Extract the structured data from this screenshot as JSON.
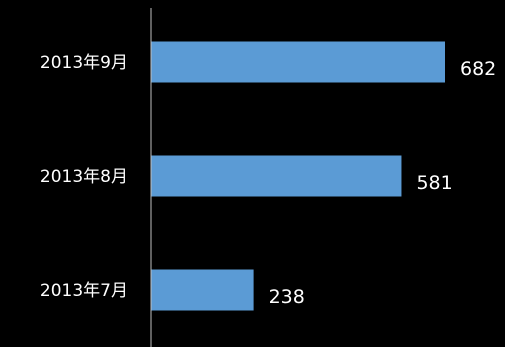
{
  "chart_data": {
    "type": "bar",
    "orientation": "horizontal",
    "categories": [
      "2013年9月",
      "2013年8月",
      "2013年7月"
    ],
    "values": [
      682,
      581,
      238
    ],
    "title": "",
    "xlabel": "",
    "ylabel": "",
    "xlim": [
      0,
      700
    ],
    "grid": false,
    "legend": "none",
    "colors": {
      "background": "#000000",
      "bar": "#5b9bd5",
      "axis": "#bfbfbf",
      "text": "#ffffff"
    }
  }
}
